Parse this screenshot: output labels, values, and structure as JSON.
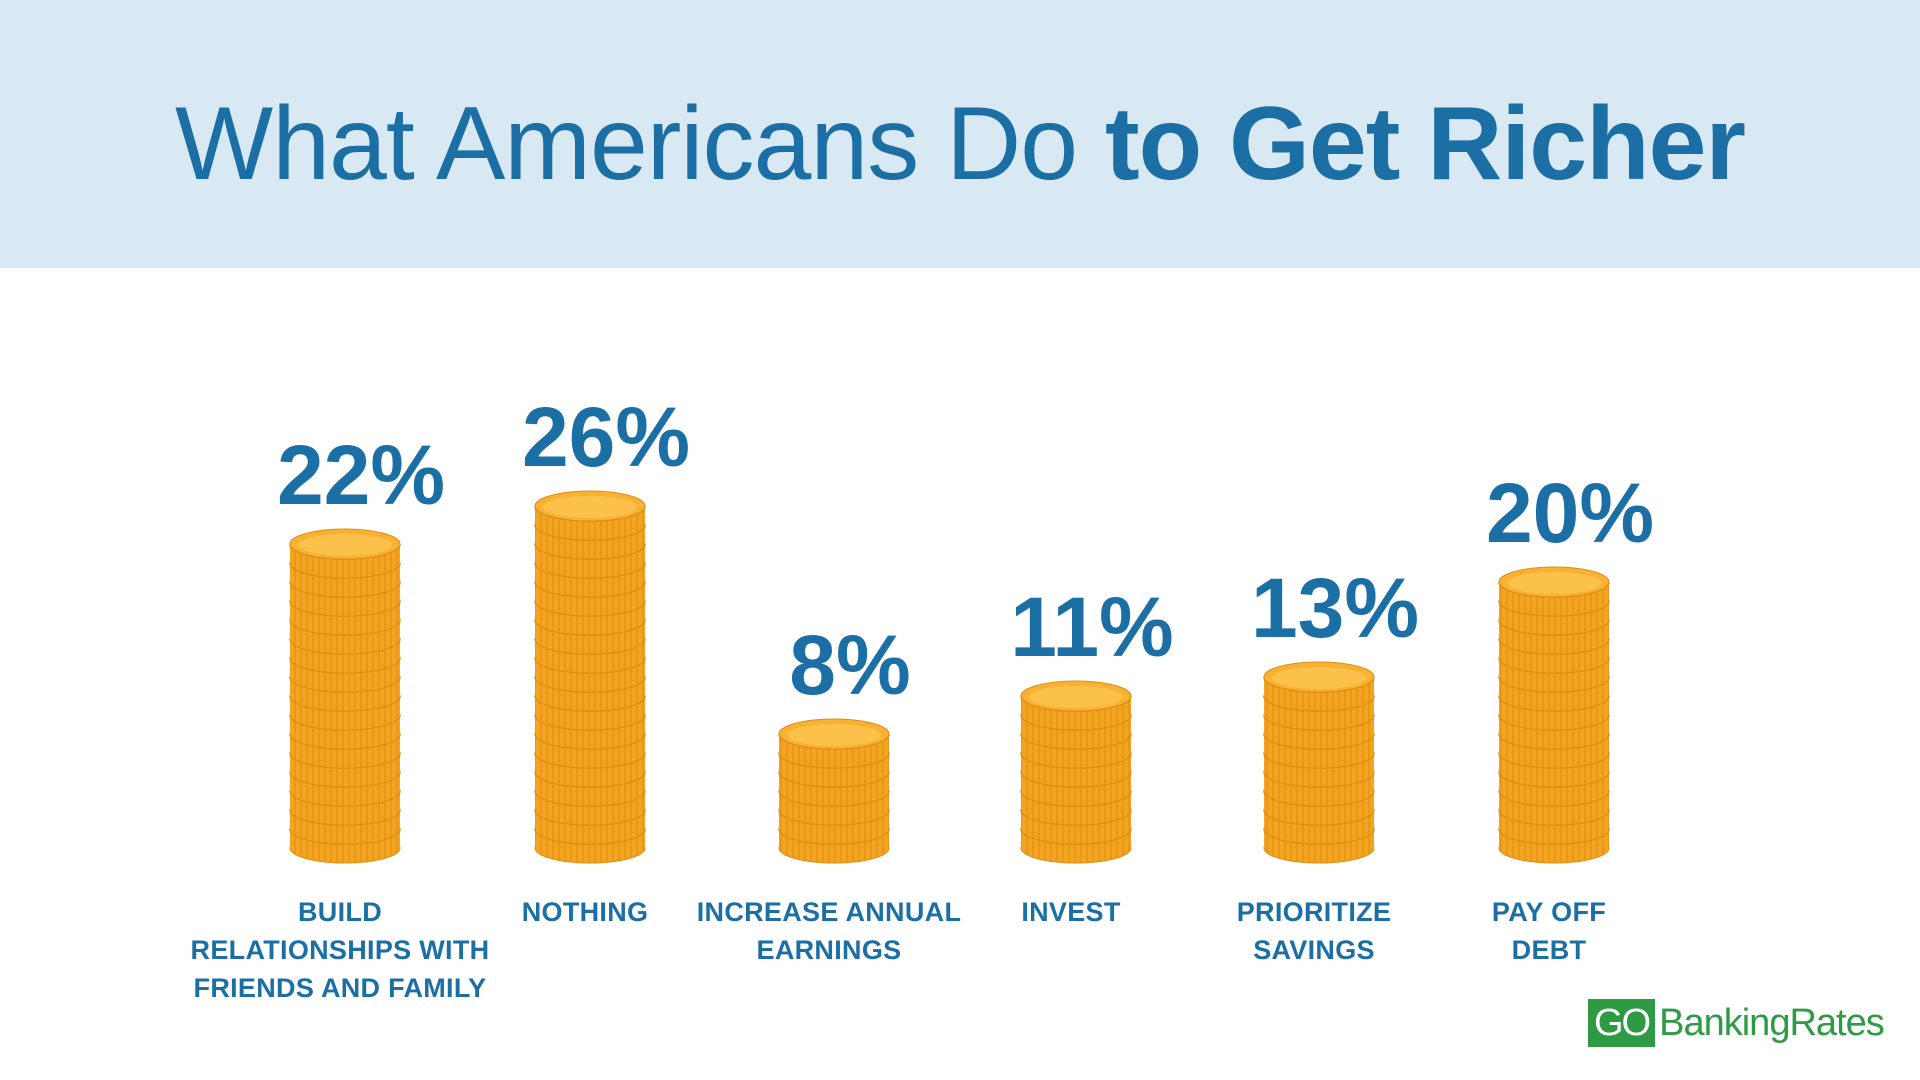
{
  "header": {
    "title_light": "What Americans Do ",
    "title_bold": "to Get Richer"
  },
  "colors": {
    "header_bg": "#d8e9f4",
    "title": "#1b6fa5",
    "coin_edge": "#f3a521",
    "coin_face": "#fbc14a",
    "coin_rim": "#f7b234",
    "coin_ridge": "#e08e12",
    "logo": "#2e9a44"
  },
  "chart_data": {
    "type": "bar",
    "categories": [
      "BUILD RELATIONSHIPS WITH FRIENDS AND FAMILY",
      "NOTHING",
      "INCREASE ANNUAL EARNINGS",
      "INVEST",
      "PRIORITIZE SAVINGS",
      "PAY OFF DEBT"
    ],
    "category_lines": [
      [
        "BUILD",
        "RELATIONSHIPS WITH",
        "FRIENDS AND FAMILY"
      ],
      [
        "NOTHING"
      ],
      [
        "INCREASE ANNUAL",
        "EARNINGS"
      ],
      [
        "INVEST"
      ],
      [
        "PRIORITIZE",
        "SAVINGS"
      ],
      [
        "PAY OFF",
        "DEBT"
      ]
    ],
    "values": [
      22,
      26,
      8,
      11,
      13,
      20
    ],
    "value_labels": [
      "22%",
      "26%",
      "8%",
      "11%",
      "13%",
      "20%"
    ],
    "unit": "%",
    "bar_style": "coin stacks",
    "title": "What Americans Do to Get Richer",
    "xlabel": "",
    "ylabel": "",
    "grid": false,
    "legend": "none"
  },
  "logo": {
    "go": "GO",
    "rest": "BankingRates"
  }
}
